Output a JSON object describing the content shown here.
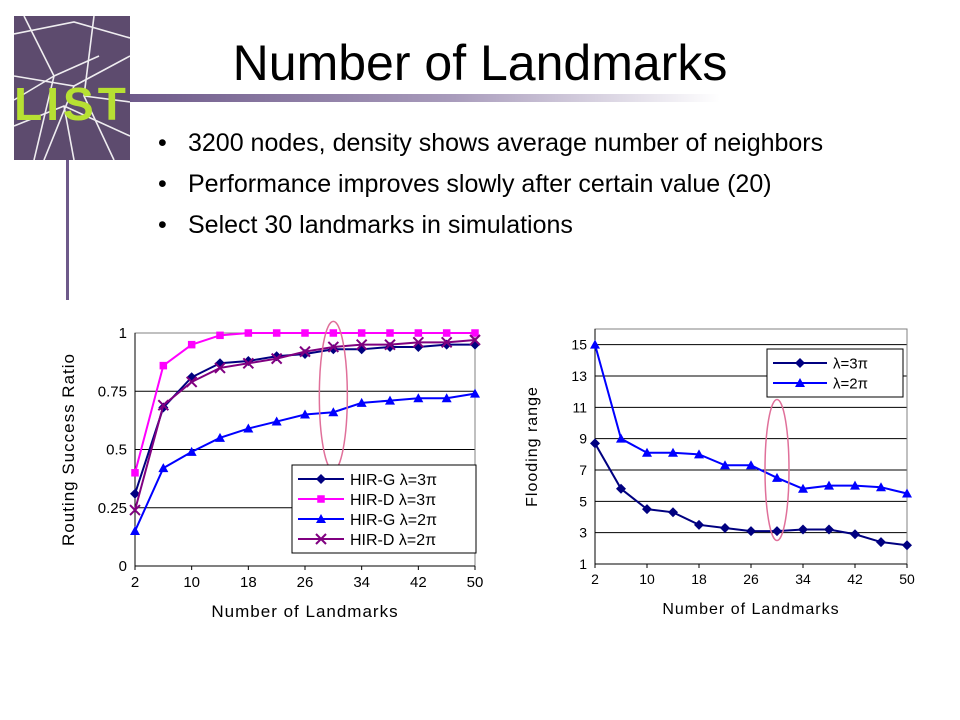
{
  "slide": {
    "title": "Number of Landmarks",
    "bullets": [
      "3200 nodes, density shows average number of neighbors",
      "Performance improves slowly after certain value (20)",
      "Select 30 landmarks in simulations"
    ],
    "logo_text": "LIST",
    "logo_icon": "shattered-glass-logo"
  },
  "chart_data": [
    {
      "type": "line",
      "xlabel": "Number of Landmarks",
      "ylabel": "Routing Success Ratio",
      "x_ticks": [
        2,
        10,
        18,
        26,
        34,
        42,
        50
      ],
      "y_ticks": [
        "0",
        "0.25",
        "0.5",
        "0.75",
        "1"
      ],
      "xlim": [
        2,
        50
      ],
      "ylim": [
        0,
        1
      ],
      "grid": "horizontal",
      "legend_position": "bottom-right",
      "x": [
        2,
        6,
        10,
        14,
        18,
        22,
        26,
        30,
        34,
        38,
        42,
        46,
        50
      ],
      "series": [
        {
          "name": "HIR-G λ=3π",
          "marker": "diamond",
          "color": "#000080",
          "values": [
            0.31,
            0.68,
            0.81,
            0.87,
            0.88,
            0.9,
            0.91,
            0.93,
            0.93,
            0.94,
            0.94,
            0.95,
            0.95
          ]
        },
        {
          "name": "HIR-D λ=3π",
          "marker": "square",
          "color": "#ff00ff",
          "values": [
            0.4,
            0.86,
            0.95,
            0.99,
            1.0,
            1.0,
            1.0,
            1.0,
            1.0,
            1.0,
            1.0,
            1.0,
            1.0
          ]
        },
        {
          "name": "HIR-G λ=2π",
          "marker": "triangle",
          "color": "#0000ff",
          "values": [
            0.15,
            0.42,
            0.49,
            0.55,
            0.59,
            0.62,
            0.65,
            0.66,
            0.7,
            0.71,
            0.72,
            0.72,
            0.74
          ]
        },
        {
          "name": "HIR-D λ=2π",
          "marker": "x",
          "color": "#800080",
          "values": [
            0.24,
            0.69,
            0.79,
            0.85,
            0.87,
            0.89,
            0.92,
            0.94,
            0.95,
            0.95,
            0.96,
            0.96,
            0.97
          ]
        }
      ],
      "highlight_x": 30
    },
    {
      "type": "line",
      "xlabel": "Number of Landmarks",
      "ylabel": "Flooding range",
      "x_ticks": [
        2,
        10,
        18,
        26,
        34,
        42,
        50
      ],
      "y_ticks": [
        "1",
        "3",
        "5",
        "7",
        "9",
        "11",
        "13",
        "15"
      ],
      "xlim": [
        2,
        50
      ],
      "ylim": [
        1,
        16
      ],
      "grid": "horizontal",
      "legend_position": "top-right",
      "x": [
        2,
        6,
        10,
        14,
        18,
        22,
        26,
        30,
        34,
        38,
        42,
        46,
        50
      ],
      "series": [
        {
          "name": "λ=3π",
          "marker": "diamond",
          "color": "#000080",
          "values": [
            8.7,
            5.8,
            4.5,
            4.3,
            3.5,
            3.3,
            3.1,
            3.1,
            3.2,
            3.2,
            2.9,
            2.4,
            2.2
          ]
        },
        {
          "name": "λ=2π",
          "marker": "triangle",
          "color": "#0000ff",
          "values": [
            15.0,
            9.0,
            8.1,
            8.1,
            8.0,
            7.3,
            7.3,
            6.5,
            5.8,
            6.0,
            6.0,
            5.9,
            5.5
          ]
        }
      ],
      "highlight_x": 30
    }
  ]
}
